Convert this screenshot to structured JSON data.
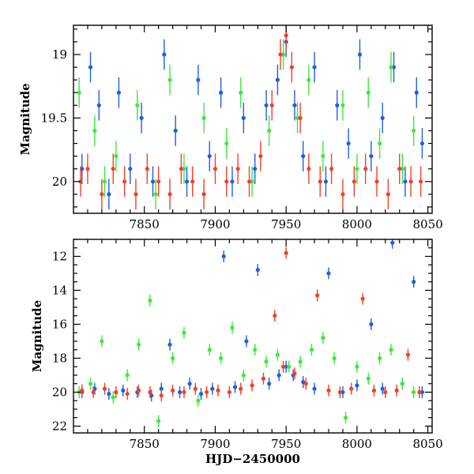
{
  "chart_data": [
    {
      "type": "scatter",
      "panel": "top",
      "title": "",
      "xlabel": "",
      "ylabel": "Magnitude",
      "xlim": [
        7800,
        8053
      ],
      "ylim": [
        20.25,
        18.77
      ],
      "y_inverted": true,
      "grid": false,
      "error_bars": true,
      "x_ticks": [
        7850,
        7900,
        7950,
        8000,
        8050
      ],
      "x_tick_labels": [
        "7850",
        "7900",
        "7950",
        "8000",
        "8050"
      ],
      "y_ticks": [
        19,
        19.5,
        20
      ],
      "y_tick_labels": [
        "19",
        "19.5",
        "20"
      ],
      "series_colors": {
        "blue": "#1f5fe0",
        "green": "#3ee83e",
        "red": "#f0402a"
      },
      "series": [
        {
          "color": "blue",
          "x": [
            7806,
            7812,
            7818,
            7825,
            7832,
            7840,
            7848,
            7856,
            7864,
            7872,
            7880,
            7888,
            7896,
            7904,
            7912,
            7920,
            7928,
            7936,
            7944,
            7950,
            7956,
            7962,
            7970,
            7978,
            7986,
            7994,
            8002,
            8010,
            8018,
            8026,
            8034,
            8042,
            8046
          ],
          "y": [
            19.9,
            19.1,
            19.4,
            20.1,
            19.3,
            19.9,
            19.5,
            20.0,
            19.0,
            19.6,
            20.0,
            19.2,
            19.8,
            19.3,
            20.0,
            19.5,
            19.9,
            19.4,
            19.2,
            18.9,
            19.4,
            19.8,
            19.1,
            20.0,
            19.4,
            19.7,
            19.0,
            19.8,
            19.5,
            19.1,
            20.0,
            19.3,
            19.7
          ]
        },
        {
          "color": "green",
          "x": [
            7804,
            7815,
            7822,
            7830,
            7845,
            7858,
            7868,
            7878,
            7892,
            7908,
            7918,
            7926,
            7938,
            7948,
            7958,
            7966,
            7976,
            7990,
            8000,
            8008,
            8016,
            8024,
            8032,
            8040
          ],
          "y": [
            19.3,
            19.6,
            20.0,
            19.8,
            19.4,
            20.1,
            19.2,
            19.9,
            19.5,
            19.7,
            19.3,
            20.0,
            19.6,
            19.0,
            19.5,
            19.2,
            19.8,
            19.4,
            19.9,
            19.3,
            19.7,
            19.1,
            19.9,
            19.6
          ]
        },
        {
          "color": "red",
          "x": [
            7805,
            7810,
            7820,
            7828,
            7836,
            7844,
            7852,
            7860,
            7868,
            7876,
            7884,
            7892,
            7900,
            7908,
            7916,
            7924,
            7932,
            7940,
            7946,
            7950,
            7954,
            7960,
            7966,
            7974,
            7982,
            7990,
            7998,
            8006,
            8014,
            8022,
            8030,
            8038,
            8045
          ],
          "y": [
            20.0,
            19.9,
            20.1,
            19.9,
            20.0,
            20.1,
            19.9,
            20.0,
            20.1,
            19.9,
            20.0,
            20.1,
            19.9,
            20.0,
            19.9,
            20.0,
            19.8,
            19.4,
            19.0,
            18.85,
            19.1,
            19.5,
            19.9,
            20.0,
            19.9,
            20.1,
            20.0,
            19.9,
            20.0,
            20.1,
            19.9,
            20.0,
            20.0
          ]
        }
      ]
    },
    {
      "type": "scatter",
      "panel": "bottom",
      "title": "",
      "xlabel": "HJD−2450000",
      "ylabel": "Magnitude",
      "xlim": [
        7800,
        8053
      ],
      "ylim": [
        22.4,
        11.0
      ],
      "y_inverted": true,
      "grid": false,
      "error_bars": true,
      "x_ticks": [
        7850,
        7900,
        7950,
        8000,
        8050
      ],
      "x_tick_labels": [
        "7850",
        "7900",
        "7950",
        "8000",
        "8050"
      ],
      "y_ticks": [
        12,
        14,
        16,
        18,
        20,
        22
      ],
      "y_tick_labels": [
        "12",
        "14",
        "16",
        "18",
        "20",
        "22"
      ],
      "series_colors": {
        "blue": "#1f5fe0",
        "green": "#3ee83e",
        "red": "#f0402a"
      },
      "series": [
        {
          "color": "blue",
          "x": [
            7806,
            7815,
            7825,
            7835,
            7845,
            7855,
            7862,
            7868,
            7875,
            7882,
            7890,
            7898,
            7906,
            7914,
            7922,
            7930,
            7938,
            7945,
            7950,
            7955,
            7962,
            7970,
            7980,
            7990,
            8000,
            8010,
            8018,
            8025,
            8032,
            8040,
            8046
          ],
          "y": [
            20.0,
            19.8,
            20.1,
            19.9,
            20.0,
            20.2,
            19.8,
            17.2,
            20.0,
            19.5,
            20.1,
            19.8,
            12.0,
            19.7,
            17.0,
            12.8,
            19.5,
            19.0,
            18.5,
            19.0,
            19.4,
            19.8,
            13.0,
            20.0,
            19.6,
            16.0,
            19.8,
            11.2,
            19.5,
            13.5,
            20.0
          ]
        },
        {
          "color": "green",
          "x": [
            7804,
            7812,
            7820,
            7828,
            7838,
            7846,
            7854,
            7860,
            7870,
            7878,
            7888,
            7896,
            7904,
            7912,
            7920,
            7928,
            7936,
            7944,
            7952,
            7960,
            7968,
            7976,
            7984,
            7992,
            8000,
            8008,
            8016,
            8024,
            8032,
            8040
          ],
          "y": [
            20.0,
            19.5,
            17.0,
            20.3,
            19.0,
            17.2,
            14.6,
            21.7,
            18.0,
            16.5,
            20.5,
            17.5,
            18.0,
            16.2,
            19.0,
            17.5,
            18.2,
            17.8,
            18.5,
            18.2,
            17.5,
            16.8,
            18.0,
            21.5,
            18.5,
            19.2,
            18.0,
            17.5,
            19.5,
            20.0
          ]
        },
        {
          "color": "red",
          "x": [
            7806,
            7814,
            7822,
            7830,
            7838,
            7846,
            7854,
            7862,
            7870,
            7878,
            7886,
            7894,
            7902,
            7910,
            7918,
            7926,
            7934,
            7942,
            7948,
            7950,
            7956,
            7964,
            7972,
            7980,
            7988,
            7996,
            8004,
            8012,
            8020,
            8028,
            8036,
            8044
          ],
          "y": [
            19.9,
            20.0,
            19.8,
            20.0,
            20.1,
            19.9,
            20.0,
            20.2,
            19.9,
            20.0,
            19.8,
            20.0,
            19.9,
            20.0,
            19.8,
            19.6,
            19.2,
            15.5,
            18.5,
            11.8,
            18.9,
            19.5,
            14.3,
            19.9,
            20.0,
            19.8,
            14.5,
            19.9,
            20.0,
            19.9,
            17.8,
            20.0
          ]
        }
      ]
    }
  ]
}
